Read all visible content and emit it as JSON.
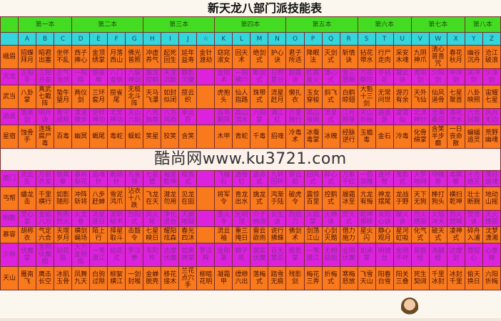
{
  "title": "新天龙八部门派技能表",
  "books": [
    {
      "label": "第一本",
      "span": 3
    },
    {
      "label": "第二本",
      "span": 4
    },
    {
      "label": "第三本",
      "span": 4
    },
    {
      "label": "第四本",
      "span": 4
    },
    {
      "label": "第五本",
      "span": 4
    },
    {
      "label": "第六本",
      "span": 3
    },
    {
      "label": "第七本",
      "span": 3
    },
    {
      "label": "第八本",
      "span": 2
    }
  ],
  "letters": [
    "A",
    "B",
    "C",
    "D",
    "E",
    "F",
    "G",
    "H",
    "I",
    "J",
    "☆",
    "K",
    "L",
    "M",
    "N",
    "O",
    "P",
    "Q",
    "R",
    "S",
    "T",
    "U",
    "V",
    "W",
    "X",
    "Y",
    "Z"
  ],
  "colors": {
    "book_row": "#44dc22",
    "letter_row": "#34d6dc",
    "orange_row": "#f97a1c",
    "magenta_row": "#dc22dc",
    "border": "#7a2a2a"
  },
  "rows": [
    {
      "label": "峨眉",
      "style": "o",
      "cells": [
        "招蝶拜月",
        "昭君出塞",
        "坐怀不乱",
        "西子捧心",
        "金顶绣掌",
        "月落西山",
        "佛光普照",
        "冲虚养气",
        "起死回生",
        "延年益寿",
        "金针渡劫",
        "窈窕淑女",
        "回天术",
        "绝剑式",
        "护心诀",
        "君子所适",
        "降眠法",
        "灭剑式",
        "斩情诀",
        "拈花带水",
        "行尸走肉",
        "采安木魂",
        "九阴神爪",
        "清心普善咒",
        "春花秋月",
        "幽谷沉舟",
        "沧江破浪"
      ]
    },
    {
      "label": "天龙",
      "style": "m",
      "cells": [
        "正阳手",
        "三阳开泰",
        "正气浩然",
        "一阳指",
        "悟彼岸",
        "八门金锁",
        "六脉神剑",
        "擒龙控鹤",
        "天龙沉默",
        "静影沉璧",
        "",
        "金刚术",
        "一阳拂穴",
        "断剑式",
        "日照夏日",
        "碧霞诀",
        "红霞星火",
        "清心式",
        "金三慧眼",
        "万岳朝宗",
        "手拈花",
        "凝云诀",
        "青阳剑",
        "少阳剑",
        "中冲剑",
        "关冲剑",
        "少泽剑"
      ]
    },
    {
      "label": "武当",
      "style": "o",
      "cells": [
        "八卦掌",
        "真武七截阵",
        "蛰牛望月",
        "两仪剑",
        "三环套月",
        "揽雀尾",
        "无极北斗阵",
        "天马飞瀑",
        "如封似闭",
        "揽云织",
        "",
        "虎抱头",
        "仙人指路",
        "珠带式",
        "流星赶月",
        "懒扎衣",
        "玉女穿梭",
        "斜飞式",
        "白鹤晾翅",
        "大魁十三剑",
        "无常问世",
        "游刃有余",
        "天外飞仙",
        "仙风道骨",
        "七星聚首",
        "八卦映照",
        "宙耀七星"
      ]
    },
    {
      "label": "逍遥",
      "style": "m",
      "cells": [
        "落英剑",
        "明月诀",
        "墨守成规",
        "凌波微步",
        "逆转神功",
        "北冥神功",
        "天山六阳",
        "八荒独尊",
        "八方风雨",
        "幸运符",
        "",
        "百鸟朝凤",
        "高山流水",
        "六阳掌",
        "满江红",
        "万里独行",
        "孤山夜雨",
        "流星式",
        "江月照雪",
        "天山折梅",
        "逍遥游",
        "凌霄仙",
        "北溟神针",
        "沧海桑田",
        "落花流水",
        "六合回春",
        "风月无边"
      ]
    },
    {
      "label": "星宿",
      "style": "o",
      "cells": [
        "蚀骨手",
        "连珠腐尸毒",
        "百毒",
        "幽冥",
        "蝎尾",
        "毒蛇",
        "蜈蚣",
        "笑星",
        "狡笑",
        "含笑",
        "",
        "木甲",
        "青蛇",
        "千毒",
        "招魂",
        "冷毒术",
        "冰蚕毒掌",
        "冰魄",
        "经脉逆行",
        "玉蟾毒",
        "金石",
        "冷毒",
        "化骨绵掌",
        "含笑半步癫",
        "一日丧命散",
        "蝙蝠追灵",
        "荒野幽魂"
      ]
    },
    {
      "label": "唐门",
      "style": "m",
      "cells": [
        "流云矢",
        "万箭齐发",
        "铁蒺藜",
        "暴雨梨花",
        "追魂针",
        "断肠针",
        "孔雀翎",
        "七星镖",
        "袖里乾坤",
        "暗香式",
        "",
        "飞蝗石",
        "透骨钉",
        "追命式",
        "九转回环",
        "穿云箭",
        "回风式",
        "碎心式",
        "万紫千红",
        "一箭双雕",
        "连环弩",
        "鬼影式",
        "天罗地网",
        "夺魄香",
        "毒蒺藜",
        "十方绝灭",
        "落日追魂"
      ]
    },
    {
      "label": "丐帮",
      "style": "o",
      "cells": [
        "蟠龙击",
        "千里横行",
        "如影随形",
        "冲阵斩将",
        "八步赶蝉",
        "雪泥鸿爪",
        "沾衣十八跌",
        "飞龙在天",
        "潜龙勿用",
        "见龙在田",
        "",
        "将军令",
        "青龙出水",
        "擒龙式",
        "鸿渐于陆",
        "破虎令",
        "震惊百里",
        "控鹤式",
        "履霜冰至",
        "亢龙有悔",
        "神龙摆尾",
        "龙战于野",
        "天下无狗",
        "棒打狗头",
        "横扫乾坤",
        "壮士断腕",
        "地动山摇"
      ]
    },
    {
      "label": "明教",
      "style": "m",
      "cells": [
        "焚心掌",
        "金焰八方",
        "熊熊烈火",
        "火龙卷",
        "流星逐日",
        "波斯秘术",
        "烈阳式",
        "风火轮",
        "净化灵台",
        "天崩地裂",
        "",
        "圣火令",
        "光明顶",
        "介子纳须",
        "长生诀",
        "烈焰刀",
        "火焰掌",
        "火神诀",
        "焚天式",
        "乾坤挪移",
        "炎阳心诀",
        "聚火诀",
        "烈火燎原",
        "火焰冲天",
        "烈火焚城",
        "焚世诀",
        "天火燎原"
      ]
    },
    {
      "label": "慕容",
      "style": "o",
      "cells": [
        "胡称衣",
        "气定六合",
        "天增岁月",
        "横剑蝇场",
        "陌上行",
        "择星取斗",
        "击鼓令",
        "七星映日",
        "耀阳炫森",
        "春光四沐",
        "",
        "流云袖",
        "重三掩日",
        "雷云欲雨",
        "说行拂蝶",
        "佛剑术",
        "剑荡江山",
        "心剑灭黯",
        "借力施力",
        "星火闪",
        "静心观月",
        "星河虹吸",
        "化气式",
        "破天式",
        "凌神式",
        "碎舟入浦",
        "沈梦潇湘"
      ]
    },
    {
      "label": "少林",
      "style": "m",
      "cells": [
        "伏魔掌",
        "金刚伏魔圈",
        "拈花指",
        "大力金刚指",
        "一苇渡江",
        "拈花式",
        "罗汉拳",
        "韦陀杵",
        "达摩伏魔",
        "如来神掌",
        "罗汉阵",
        "金刚罩",
        "狮子吼",
        "袈裟伏魔",
        "百无禁忌",
        "般若掌",
        "一苇渡江",
        "无相劫指",
        "金刚伏魔",
        "如来掌",
        "明镜台",
        "金刚不坏",
        "易筋经",
        "洗髓经",
        "达摩剑",
        "菩提心",
        "心意禅"
      ]
    },
    {
      "label": "天山",
      "style": "o",
      "cells": [
        "雁南飞",
        "鹰击长空",
        "冰肌玉骨",
        "凤舞九天",
        "白驹过隙",
        "柳絮横江",
        "一剑封喉",
        "金蝉脱壳",
        "移花接木",
        "兰花点穴手",
        "柳暗花明",
        "凝霜甲",
        "缥缈六出",
        "落梅式",
        "踏雪无痕",
        "残影剑",
        "梅花三弄",
        "折梅式",
        "寒梅怒放",
        "飞雪天山",
        "阳春白雪",
        "阳关三叠",
        "死生契阔",
        "千里冰封",
        "冰封千里",
        "偷天换日",
        "六阳折梅"
      ]
    }
  ],
  "watermark": "酷尚网www.ku3721.com"
}
